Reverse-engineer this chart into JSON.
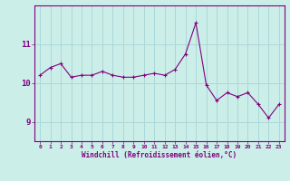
{
  "x": [
    0,
    1,
    2,
    3,
    4,
    5,
    6,
    7,
    8,
    9,
    10,
    11,
    12,
    13,
    14,
    15,
    16,
    17,
    18,
    19,
    20,
    21,
    22,
    23
  ],
  "y": [
    10.2,
    10.4,
    10.5,
    10.15,
    10.2,
    10.2,
    10.3,
    10.2,
    10.15,
    10.15,
    10.2,
    10.25,
    10.2,
    10.35,
    10.75,
    11.55,
    9.95,
    9.55,
    9.75,
    9.65,
    9.75,
    9.45,
    9.1,
    9.45
  ],
  "line_color": "#800080",
  "marker": "+",
  "bg_color": "#cceee8",
  "grid_color": "#aad8d8",
  "xlabel": "Windchill (Refroidissement éolien,°C)",
  "yticks": [
    9,
    10,
    11
  ],
  "ylim": [
    8.5,
    12.0
  ],
  "xlim": [
    -0.5,
    23.5
  ],
  "xtick_labels": [
    "0",
    "1",
    "2",
    "3",
    "4",
    "5",
    "6",
    "7",
    "8",
    "9",
    "10",
    "11",
    "12",
    "13",
    "14",
    "15",
    "16",
    "17",
    "18",
    "19",
    "20",
    "21",
    "22",
    "23"
  ],
  "axis_color": "#800080",
  "font_color": "#800080"
}
